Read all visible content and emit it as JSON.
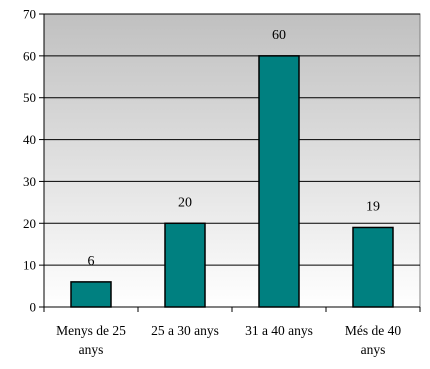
{
  "chart_data": {
    "type": "bar",
    "categories": [
      [
        "Menys de 25",
        "anys"
      ],
      [
        "25 a 30 anys"
      ],
      [
        "31 a 40 anys"
      ],
      [
        "Més de 40",
        "anys"
      ]
    ],
    "values": [
      6,
      20,
      60,
      19
    ],
    "data_labels": [
      "6",
      "20",
      "60",
      "19"
    ],
    "title": "",
    "xlabel": "",
    "ylabel": "",
    "ylim": [
      0,
      70
    ],
    "yticks": [
      "0",
      "10",
      "20",
      "30",
      "40",
      "50",
      "60",
      "70"
    ],
    "grid": true,
    "legend": "none",
    "colors": {
      "bar": "#008080",
      "bar_stroke": "#000000",
      "plot_bg_top": "#c0c0c0",
      "plot_bg_bottom": "#ffffff",
      "grid": "#000000"
    }
  }
}
